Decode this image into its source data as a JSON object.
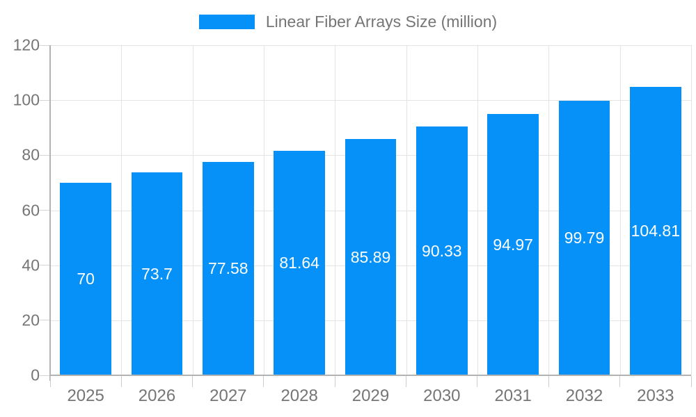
{
  "legend": {
    "label": "Linear Fiber Arrays Size (million)",
    "swatch_color": "#0591f7"
  },
  "chart_data": {
    "type": "bar",
    "title": "Linear Fiber Arrays Size (million)",
    "categories": [
      "2025",
      "2026",
      "2027",
      "2028",
      "2029",
      "2030",
      "2031",
      "2032",
      "2033"
    ],
    "values": [
      70,
      73.7,
      77.58,
      81.64,
      85.89,
      90.33,
      94.97,
      99.79,
      104.81
    ],
    "value_labels": [
      "70",
      "73.7",
      "77.58",
      "81.64",
      "85.89",
      "90.33",
      "94.97",
      "99.79",
      "104.81"
    ],
    "xlabel": "",
    "ylabel": "",
    "ylim": [
      0,
      120
    ],
    "yticks": [
      0,
      20,
      40,
      60,
      80,
      100,
      120
    ],
    "grid": true,
    "legend_position": "top-center",
    "bar_color": "#0591f7",
    "value_label_color": "#ffffff",
    "axis_text_color": "#757575"
  }
}
